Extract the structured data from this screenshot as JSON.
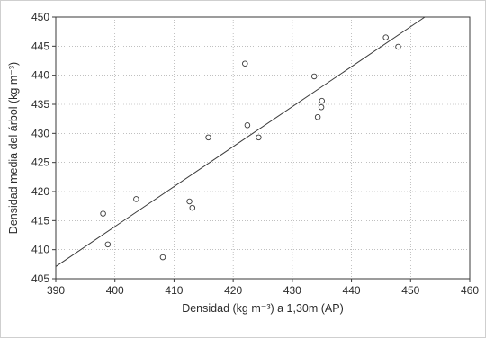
{
  "chart_data": {
    "type": "scatter",
    "xlabel": "Densidad (kg m⁻³) a 1,30m (AP)",
    "ylabel": "Densidad media del árbol (kg m⁻³)",
    "xlim": [
      390,
      460
    ],
    "ylim": [
      405,
      450
    ],
    "x_ticks": [
      390,
      400,
      410,
      420,
      430,
      440,
      450,
      460
    ],
    "y_ticks": [
      405,
      410,
      415,
      420,
      425,
      430,
      435,
      440,
      445,
      450
    ],
    "x_tick_labels": [
      "390",
      "400",
      "410",
      "420",
      "430",
      "440",
      "450",
      "460"
    ],
    "y_tick_labels": [
      "405",
      "410",
      "415",
      "420",
      "425",
      "430",
      "435",
      "440",
      "445",
      "450"
    ],
    "grid": true,
    "points": [
      {
        "x": 398.0,
        "y": 416.2
      },
      {
        "x": 398.8,
        "y": 410.9
      },
      {
        "x": 403.6,
        "y": 418.7
      },
      {
        "x": 408.1,
        "y": 408.7
      },
      {
        "x": 412.6,
        "y": 418.3
      },
      {
        "x": 413.1,
        "y": 417.2
      },
      {
        "x": 415.8,
        "y": 429.3
      },
      {
        "x": 422.0,
        "y": 442.0
      },
      {
        "x": 422.4,
        "y": 431.4
      },
      {
        "x": 424.3,
        "y": 429.3
      },
      {
        "x": 433.7,
        "y": 439.8
      },
      {
        "x": 434.3,
        "y": 432.8
      },
      {
        "x": 434.9,
        "y": 434.5
      },
      {
        "x": 435.0,
        "y": 435.6
      },
      {
        "x": 445.8,
        "y": 446.5
      },
      {
        "x": 447.9,
        "y": 444.9
      }
    ],
    "regression_line": {
      "x": [
        390,
        452.4
      ],
      "y": [
        407.1,
        450.0
      ]
    }
  }
}
